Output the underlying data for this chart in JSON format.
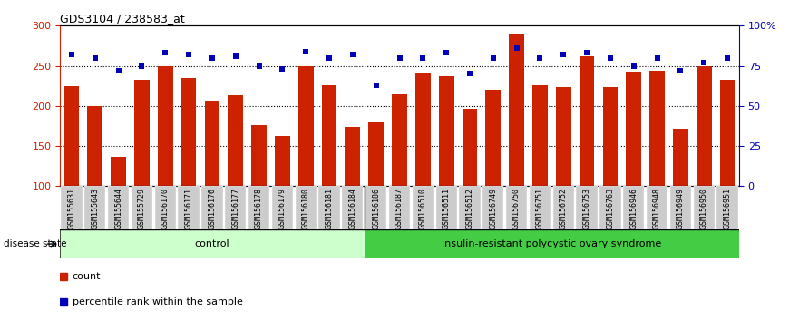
{
  "title": "GDS3104 / 238583_at",
  "samples": [
    "GSM155631",
    "GSM155643",
    "GSM155644",
    "GSM155729",
    "GSM156170",
    "GSM156171",
    "GSM156176",
    "GSM156177",
    "GSM156178",
    "GSM156179",
    "GSM156180",
    "GSM156181",
    "GSM156184",
    "GSM156186",
    "GSM156187",
    "GSM156510",
    "GSM156511",
    "GSM156512",
    "GSM156749",
    "GSM156750",
    "GSM156751",
    "GSM156752",
    "GSM156753",
    "GSM156763",
    "GSM156946",
    "GSM156948",
    "GSM156949",
    "GSM156950",
    "GSM156951"
  ],
  "counts": [
    225,
    200,
    137,
    233,
    250,
    235,
    207,
    213,
    176,
    163,
    250,
    226,
    174,
    180,
    215,
    240,
    237,
    196,
    220,
    290,
    226,
    224,
    262,
    224,
    243,
    244,
    172,
    249,
    233
  ],
  "percentiles": [
    82,
    80,
    72,
    75,
    83,
    82,
    80,
    81,
    75,
    73,
    84,
    80,
    82,
    63,
    80,
    80,
    83,
    70,
    80,
    86,
    80,
    82,
    83,
    80,
    75,
    80,
    72,
    77,
    80
  ],
  "control_count": 13,
  "disease_count": 16,
  "group_labels": [
    "control",
    "insulin-resistant polycystic ovary syndrome"
  ],
  "ylim_left": [
    100,
    300
  ],
  "ylim_right": [
    0,
    100
  ],
  "yticks_left": [
    100,
    150,
    200,
    250,
    300
  ],
  "yticks_right": [
    0,
    25,
    50,
    75,
    100
  ],
  "ytick_labels_right": [
    "0",
    "25",
    "50",
    "75",
    "100%"
  ],
  "bar_color": "#CC2200",
  "square_color": "#0000BB",
  "control_bg": "#CCFFCC",
  "disease_bg": "#44CC44",
  "xlabel_bg": "#CCCCCC",
  "legend_bar_label": "count",
  "legend_sq_label": "percentile rank within the sample"
}
